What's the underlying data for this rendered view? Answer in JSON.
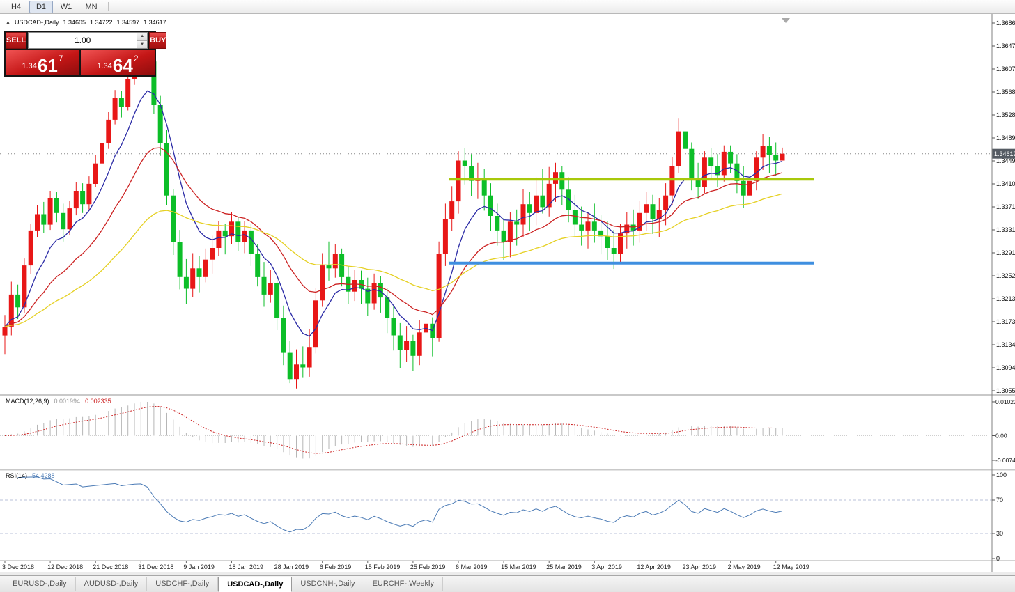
{
  "toolbar": {
    "timeframes": [
      {
        "label": "H4",
        "active": false
      },
      {
        "label": "D1",
        "active": true
      },
      {
        "label": "W1",
        "active": false
      },
      {
        "label": "MN",
        "active": false
      }
    ]
  },
  "header": {
    "collapse_icon": "▲",
    "title": "USDCAD-,Daily",
    "open": "1.34605",
    "high": "1.34722",
    "low": "1.34597",
    "close": "1.34617"
  },
  "trade_panel": {
    "sell_label": "SELL",
    "buy_label": "BUY",
    "volume": "1.00",
    "spin_up": "▲",
    "spin_down": "▼",
    "sell_price": {
      "prefix": "1.34",
      "big": "61",
      "pip": "7"
    },
    "buy_price": {
      "prefix": "1.34",
      "big": "64",
      "pip": "2"
    }
  },
  "price_axis": {
    "labels": [
      "1.36860",
      "1.36470",
      "1.36070",
      "1.35680",
      "1.35280",
      "1.34890",
      "1.34490",
      "1.34100",
      "1.33710",
      "1.33310",
      "1.32910",
      "1.32520",
      "1.32130",
      "1.31730",
      "1.31340",
      "1.30940",
      "1.30550"
    ],
    "current": "1.34617"
  },
  "date_axis": {
    "labels": [
      "3 Dec 2018",
      "12 Dec 2018",
      "21 Dec 2018",
      "31 Dec 2018",
      "9 Jan 2019",
      "18 Jan 2019",
      "28 Jan 2019",
      "6 Feb 2019",
      "15 Feb 2019",
      "25 Feb 2019",
      "6 Mar 2019",
      "15 Mar 2019",
      "25 Mar 2019",
      "3 Apr 2019",
      "12 Apr 2019",
      "23 Apr 2019",
      "2 May 2019",
      "12 May 2019"
    ]
  },
  "indicators": {
    "macd": {
      "name": "MACD(12,26,9)",
      "value_main": "0.001994",
      "value_signal": "0.002335",
      "fast": 12,
      "slow": 26,
      "signal": 9,
      "axis_labels": [
        "0.010225",
        "0.00",
        "-0.007475"
      ],
      "scale_max": 0.010225,
      "scale_min": -0.007475,
      "histogram_color": "#b6b6b6",
      "signal_color": "#cc2222"
    },
    "rsi": {
      "name": "RSI(14)",
      "value": "54.4288",
      "period": 14,
      "axis_labels": [
        "100",
        "70",
        "30",
        "0"
      ],
      "levels": [
        70,
        30
      ],
      "color": "#4a7ab5",
      "level_color": "#b9c2d8"
    }
  },
  "tabs": [
    {
      "label": "EURUSD-,Daily",
      "active": false
    },
    {
      "label": "AUDUSD-,Daily",
      "active": false
    },
    {
      "label": "USDCHF-,Daily",
      "active": false
    },
    {
      "label": "USDCAD-,Daily",
      "active": true
    },
    {
      "label": "USDCNH-,Daily",
      "active": false
    },
    {
      "label": "EURCHF-,Weekly",
      "active": false
    }
  ],
  "chart_data": {
    "type": "candlestick",
    "symbol": "USDCAD",
    "timeframe": "Daily",
    "up_color": "#e81717",
    "down_color": "#0cbe28",
    "price_scale": {
      "top": 1.3686,
      "bottom": 1.3055
    },
    "last_price": 1.34617,
    "first_open": 1.315,
    "candles_hlc": [
      [
        1.3185,
        1.3118,
        1.3165
      ],
      [
        1.3242,
        1.315,
        1.322
      ],
      [
        1.3237,
        1.3178,
        1.3198
      ],
      [
        1.3282,
        1.3188,
        1.327
      ],
      [
        1.3341,
        1.3255,
        1.333
      ],
      [
        1.3373,
        1.3318,
        1.3358
      ],
      [
        1.3379,
        1.3326,
        1.334
      ],
      [
        1.3398,
        1.3331,
        1.3385
      ],
      [
        1.3396,
        1.3344,
        1.336
      ],
      [
        1.3376,
        1.3311,
        1.3332
      ],
      [
        1.3381,
        1.3322,
        1.3368
      ],
      [
        1.3413,
        1.3356,
        1.3398
      ],
      [
        1.3411,
        1.336,
        1.3375
      ],
      [
        1.3423,
        1.3366,
        1.341
      ],
      [
        1.3459,
        1.3405,
        1.3445
      ],
      [
        1.3496,
        1.3438,
        1.348
      ],
      [
        1.3533,
        1.347,
        1.352
      ],
      [
        1.3571,
        1.3512,
        1.3558
      ],
      [
        1.3569,
        1.3524,
        1.3542
      ],
      [
        1.3606,
        1.3536,
        1.359
      ],
      [
        1.3646,
        1.358,
        1.363
      ],
      [
        1.3656,
        1.3609,
        1.3642
      ],
      [
        1.3664,
        1.3595,
        1.362
      ],
      [
        1.3632,
        1.353,
        1.3545
      ],
      [
        1.3561,
        1.3458,
        1.348
      ],
      [
        1.3502,
        1.3374,
        1.339
      ],
      [
        1.3401,
        1.3288,
        1.331
      ],
      [
        1.3331,
        1.3229,
        1.325
      ],
      [
        1.3281,
        1.3204,
        1.323
      ],
      [
        1.3291,
        1.3216,
        1.3265
      ],
      [
        1.3286,
        1.3224,
        1.325
      ],
      [
        1.3299,
        1.3241,
        1.328
      ],
      [
        1.3321,
        1.3256,
        1.33
      ],
      [
        1.3346,
        1.3286,
        1.333
      ],
      [
        1.3341,
        1.3289,
        1.332
      ],
      [
        1.3361,
        1.3306,
        1.3345
      ],
      [
        1.3353,
        1.3294,
        1.331
      ],
      [
        1.3346,
        1.3291,
        1.333
      ],
      [
        1.3341,
        1.3269,
        1.329
      ],
      [
        1.3306,
        1.3234,
        1.325
      ],
      [
        1.3276,
        1.3199,
        1.322
      ],
      [
        1.3263,
        1.3206,
        1.324
      ],
      [
        1.3251,
        1.3159,
        1.318
      ],
      [
        1.3201,
        1.3099,
        1.312
      ],
      [
        1.3141,
        1.3068,
        1.3075
      ],
      [
        1.3126,
        1.3059,
        1.31
      ],
      [
        1.3131,
        1.3077,
        1.3095
      ],
      [
        1.3161,
        1.3079,
        1.313
      ],
      [
        1.3231,
        1.3119,
        1.321
      ],
      [
        1.3291,
        1.3199,
        1.327
      ],
      [
        1.3311,
        1.3244,
        1.3265
      ],
      [
        1.3306,
        1.3249,
        1.329
      ],
      [
        1.3299,
        1.3234,
        1.325
      ],
      [
        1.3269,
        1.3204,
        1.3225
      ],
      [
        1.3263,
        1.3209,
        1.3245
      ],
      [
        1.3261,
        1.3204,
        1.323
      ],
      [
        1.3249,
        1.3184,
        1.3205
      ],
      [
        1.3256,
        1.3194,
        1.324
      ],
      [
        1.3251,
        1.3189,
        1.3215
      ],
      [
        1.3231,
        1.3154,
        1.318
      ],
      [
        1.3201,
        1.3124,
        1.315
      ],
      [
        1.3171,
        1.3094,
        1.3125
      ],
      [
        1.3166,
        1.3104,
        1.314
      ],
      [
        1.3151,
        1.3089,
        1.3115
      ],
      [
        1.3176,
        1.3099,
        1.3155
      ],
      [
        1.3196,
        1.3129,
        1.317
      ],
      [
        1.3181,
        1.3114,
        1.3145
      ],
      [
        1.3311,
        1.3139,
        1.329
      ],
      [
        1.3376,
        1.3269,
        1.335
      ],
      [
        1.3406,
        1.3329,
        1.338
      ],
      [
        1.3466,
        1.3359,
        1.345
      ],
      [
        1.3471,
        1.3409,
        1.344
      ],
      [
        1.3461,
        1.3389,
        1.3415
      ],
      [
        1.3446,
        1.3384,
        1.342
      ],
      [
        1.3436,
        1.3364,
        1.339
      ],
      [
        1.3411,
        1.3329,
        1.3355
      ],
      [
        1.3376,
        1.3304,
        1.333
      ],
      [
        1.3351,
        1.3279,
        1.331
      ],
      [
        1.3361,
        1.3284,
        1.3345
      ],
      [
        1.3366,
        1.3304,
        1.334
      ],
      [
        1.3401,
        1.3319,
        1.3375
      ],
      [
        1.3396,
        1.3329,
        1.336
      ],
      [
        1.3421,
        1.3339,
        1.339
      ],
      [
        1.3436,
        1.3359,
        1.337
      ],
      [
        1.3439,
        1.3354,
        1.341
      ],
      [
        1.3446,
        1.3379,
        1.343
      ],
      [
        1.3441,
        1.3374,
        1.34
      ],
      [
        1.3421,
        1.3344,
        1.3365
      ],
      [
        1.3391,
        1.3319,
        1.334
      ],
      [
        1.3371,
        1.3304,
        1.333
      ],
      [
        1.3361,
        1.3299,
        1.3345
      ],
      [
        1.3376,
        1.3309,
        1.333
      ],
      [
        1.3356,
        1.3289,
        1.332
      ],
      [
        1.3346,
        1.3279,
        1.33
      ],
      [
        1.3331,
        1.3264,
        1.329
      ],
      [
        1.3341,
        1.3274,
        1.3325
      ],
      [
        1.3361,
        1.3299,
        1.334
      ],
      [
        1.3366,
        1.3304,
        1.333
      ],
      [
        1.3381,
        1.3309,
        1.336
      ],
      [
        1.3396,
        1.3329,
        1.3375
      ],
      [
        1.3391,
        1.3324,
        1.335
      ],
      [
        1.3386,
        1.3319,
        1.3365
      ],
      [
        1.3411,
        1.3339,
        1.339
      ],
      [
        1.3456,
        1.3374,
        1.344
      ],
      [
        1.3522,
        1.3429,
        1.35
      ],
      [
        1.3516,
        1.3444,
        1.347
      ],
      [
        1.3481,
        1.3399,
        1.342
      ],
      [
        1.3446,
        1.3384,
        1.3405
      ],
      [
        1.3466,
        1.3394,
        1.3455
      ],
      [
        1.3471,
        1.3419,
        1.344
      ],
      [
        1.3461,
        1.3404,
        1.3425
      ],
      [
        1.3476,
        1.3414,
        1.3465
      ],
      [
        1.3476,
        1.3429,
        1.3445
      ],
      [
        1.3461,
        1.3394,
        1.3415
      ],
      [
        1.3441,
        1.3369,
        1.339
      ],
      [
        1.3431,
        1.3359,
        1.3415
      ],
      [
        1.3466,
        1.3399,
        1.3455
      ],
      [
        1.3496,
        1.3434,
        1.3475
      ],
      [
        1.3491,
        1.3429,
        1.346
      ],
      [
        1.3481,
        1.3424,
        1.345
      ],
      [
        1.34722,
        1.34597,
        1.34617
      ]
    ],
    "ma_lines": [
      {
        "period": 8,
        "method": "ema",
        "color": "#2b2ba6"
      },
      {
        "period": 20,
        "method": "ema",
        "color": "#cc2222"
      },
      {
        "period": 45,
        "method": "ema",
        "color": "#e5d022"
      }
    ],
    "hlines": [
      {
        "price": 1.3418,
        "color": "#a8c80a",
        "from_index": 69
      },
      {
        "price": 1.3274,
        "color": "#3f8fe0",
        "from_index": 69
      }
    ]
  }
}
